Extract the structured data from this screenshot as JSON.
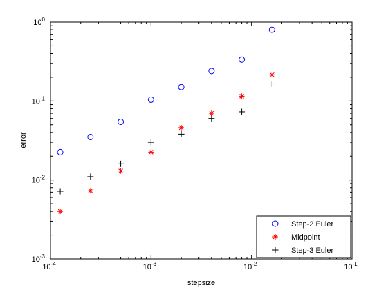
{
  "chart_data": {
    "type": "scatter",
    "title": "",
    "xlabel": "stepsize",
    "ylabel": "error",
    "xscale": "log",
    "yscale": "log",
    "xlim": [
      0.0001,
      0.1
    ],
    "ylim": [
      0.001,
      1
    ],
    "grid": false,
    "legend_position": "bottom-right",
    "x_ticks": [
      {
        "value": 0.0001,
        "base": "10",
        "exp": "-4"
      },
      {
        "value": 0.001,
        "base": "10",
        "exp": "-3"
      },
      {
        "value": 0.01,
        "base": "10",
        "exp": "-2"
      },
      {
        "value": 0.1,
        "base": "10",
        "exp": "-1"
      }
    ],
    "y_ticks": [
      {
        "value": 0.001,
        "base": "10",
        "exp": "-3"
      },
      {
        "value": 0.01,
        "base": "10",
        "exp": "-2"
      },
      {
        "value": 0.1,
        "base": "10",
        "exp": "-1"
      },
      {
        "value": 1,
        "base": "10",
        "exp": "0"
      }
    ],
    "x": [
      0.000125,
      0.00025,
      0.0005,
      0.001,
      0.002,
      0.004,
      0.008,
      0.016
    ],
    "series": [
      {
        "name": "Step-2 Euler",
        "marker": "circle",
        "color": "#0000ff",
        "values": [
          0.0225,
          0.035,
          0.0545,
          0.104,
          0.15,
          0.24,
          0.335,
          0.8
        ]
      },
      {
        "name": "Midpoint",
        "marker": "asterisk",
        "color": "#ff0000",
        "values": [
          0.004,
          0.0073,
          0.013,
          0.0225,
          0.046,
          0.07,
          0.115,
          0.215
        ]
      },
      {
        "name": "Step-3 Euler",
        "marker": "plus",
        "color": "#000000",
        "values": [
          0.0072,
          0.011,
          0.016,
          0.03,
          0.038,
          0.06,
          0.073,
          0.165
        ]
      }
    ]
  }
}
